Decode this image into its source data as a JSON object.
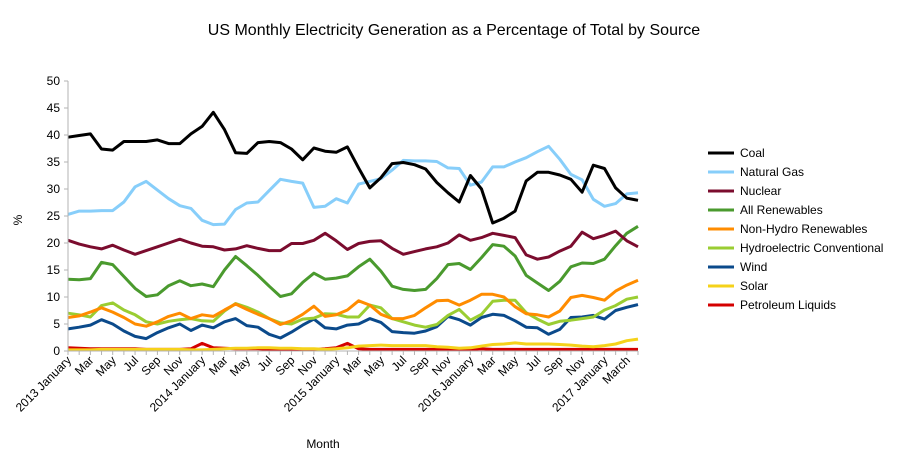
{
  "chart_data": {
    "type": "line",
    "title": "US Monthly Electricity Generation as a Percentage of Total by Source",
    "xlabel": "Month",
    "ylabel": "%",
    "ylim": [
      0,
      50
    ],
    "yticks": [
      0,
      5,
      10,
      15,
      20,
      25,
      30,
      35,
      40,
      45,
      50
    ],
    "grid": false,
    "legend_position": "right",
    "x_tick_labels": [
      {
        "index": 0,
        "label": "2013 January"
      },
      {
        "index": 2,
        "label": "Mar"
      },
      {
        "index": 4,
        "label": "May"
      },
      {
        "index": 6,
        "label": "Jul"
      },
      {
        "index": 8,
        "label": "Sep"
      },
      {
        "index": 10,
        "label": "Nov"
      },
      {
        "index": 12,
        "label": "2014 January"
      },
      {
        "index": 14,
        "label": "Mar"
      },
      {
        "index": 16,
        "label": "May"
      },
      {
        "index": 18,
        "label": "Jul"
      },
      {
        "index": 20,
        "label": "Sep"
      },
      {
        "index": 22,
        "label": "Nov"
      },
      {
        "index": 24,
        "label": "2015 January"
      },
      {
        "index": 26,
        "label": "Mar"
      },
      {
        "index": 28,
        "label": "May"
      },
      {
        "index": 30,
        "label": "Jul"
      },
      {
        "index": 32,
        "label": "Sep"
      },
      {
        "index": 34,
        "label": "Nov"
      },
      {
        "index": 36,
        "label": "2016 January"
      },
      {
        "index": 38,
        "label": "Mar"
      },
      {
        "index": 40,
        "label": "May"
      },
      {
        "index": 42,
        "label": "Jul"
      },
      {
        "index": 44,
        "label": "Sep"
      },
      {
        "index": 46,
        "label": "Nov"
      },
      {
        "index": 48,
        "label": "2017 January"
      },
      {
        "index": 50,
        "label": "March"
      }
    ],
    "series": [
      {
        "name": "Coal",
        "color": "#000000",
        "values": [
          39.6,
          39.9,
          40.2,
          37.4,
          37.2,
          38.8,
          38.8,
          38.8,
          39.1,
          38.4,
          38.4,
          40.2,
          41.6,
          44.2,
          41.0,
          36.7,
          36.6,
          38.6,
          38.8,
          38.6,
          37.4,
          35.4,
          37.6,
          37.0,
          36.8,
          37.8,
          33.9,
          30.2,
          32.1,
          34.7,
          34.9,
          34.5,
          33.7,
          31.2,
          29.3,
          27.6,
          32.5,
          30.0,
          23.7,
          24.6,
          25.9,
          31.5,
          33.1,
          33.1,
          32.6,
          31.8,
          29.4,
          34.4,
          33.8,
          30.2,
          28.3,
          27.9
        ]
      },
      {
        "name": "Natural Gas",
        "color": "#87cefa",
        "values": [
          25.3,
          25.9,
          25.9,
          26.0,
          26.0,
          27.6,
          30.4,
          31.4,
          29.8,
          28.2,
          26.9,
          26.4,
          24.2,
          23.4,
          23.5,
          26.2,
          27.4,
          27.6,
          29.7,
          31.8,
          31.4,
          31.1,
          26.6,
          26.8,
          28.2,
          27.4,
          30.9,
          31.4,
          31.9,
          33.5,
          35.3,
          35.2,
          35.2,
          35.1,
          33.9,
          33.8,
          30.7,
          31.3,
          34.1,
          34.1,
          35.0,
          35.8,
          36.9,
          37.9,
          35.5,
          32.7,
          31.7,
          28.1,
          26.8,
          27.3,
          29.1,
          29.3
        ]
      },
      {
        "name": "Nuclear",
        "color": "#7b0c2e",
        "values": [
          20.5,
          19.8,
          19.3,
          18.9,
          19.6,
          18.7,
          17.9,
          18.6,
          19.3,
          20.0,
          20.7,
          20.0,
          19.4,
          19.3,
          18.7,
          18.9,
          19.5,
          19.0,
          18.6,
          18.6,
          19.9,
          19.9,
          20.5,
          21.8,
          20.4,
          18.8,
          19.9,
          20.3,
          20.4,
          19.0,
          17.9,
          18.4,
          18.9,
          19.3,
          20.0,
          21.5,
          20.5,
          21.0,
          21.8,
          21.4,
          21.0,
          17.8,
          17.0,
          17.4,
          18.5,
          19.4,
          22.0,
          20.8,
          21.4,
          22.2,
          20.4,
          19.3
        ]
      },
      {
        "name": "All Renewables",
        "color": "#4a9a2e",
        "values": [
          13.3,
          13.2,
          13.4,
          16.4,
          16.0,
          13.8,
          11.6,
          10.1,
          10.4,
          12.1,
          13.0,
          12.1,
          12.4,
          11.9,
          15.0,
          17.5,
          15.8,
          14.0,
          12.0,
          10.1,
          10.6,
          12.7,
          14.4,
          13.3,
          13.5,
          13.9,
          15.6,
          17.0,
          14.8,
          12.0,
          11.4,
          11.2,
          11.4,
          13.4,
          16.0,
          16.2,
          15.1,
          17.3,
          19.7,
          19.4,
          17.6,
          14.0,
          12.6,
          11.2,
          12.9,
          15.6,
          16.3,
          16.2,
          17.0,
          19.5,
          21.8,
          23.1
        ]
      },
      {
        "name": "Non-Hydro Renewables",
        "color": "#ff8c00",
        "values": [
          6.2,
          6.5,
          7.2,
          8.0,
          7.2,
          6.2,
          5.0,
          4.6,
          5.4,
          6.4,
          7.0,
          6.0,
          6.7,
          6.4,
          7.6,
          8.7,
          7.7,
          6.8,
          6.0,
          4.9,
          5.6,
          6.8,
          8.3,
          6.4,
          6.7,
          7.6,
          9.3,
          8.5,
          6.8,
          6.0,
          6.0,
          6.6,
          8.0,
          9.3,
          9.4,
          8.5,
          9.4,
          10.5,
          10.5,
          10.0,
          8.2,
          6.9,
          6.7,
          6.3,
          7.4,
          9.9,
          10.3,
          9.9,
          9.4,
          11.1,
          12.2,
          13.1
        ]
      },
      {
        "name": "Hydroelectric Conventional",
        "color": "#9acd32",
        "values": [
          7.0,
          6.7,
          6.3,
          8.4,
          8.9,
          7.6,
          6.7,
          5.4,
          5.0,
          5.5,
          5.8,
          6.0,
          5.6,
          5.5,
          7.4,
          8.8,
          8.1,
          7.2,
          6.0,
          5.2,
          5.0,
          5.9,
          6.1,
          6.9,
          6.8,
          6.3,
          6.3,
          8.5,
          8.0,
          6.0,
          5.4,
          4.8,
          4.4,
          4.9,
          6.6,
          7.7,
          5.7,
          6.8,
          9.2,
          9.4,
          9.4,
          7.1,
          5.9,
          4.9,
          5.5,
          5.7,
          6.0,
          6.3,
          7.6,
          8.4,
          9.6,
          10.0
        ]
      },
      {
        "name": "Wind",
        "color": "#0b4a8b",
        "values": [
          4.1,
          4.4,
          4.8,
          5.8,
          5.0,
          3.7,
          2.7,
          2.3,
          3.4,
          4.3,
          5.0,
          3.8,
          4.8,
          4.3,
          5.4,
          6.0,
          4.7,
          4.4,
          3.1,
          2.4,
          3.5,
          4.8,
          5.9,
          4.3,
          4.1,
          4.8,
          5.0,
          6.0,
          5.3,
          3.6,
          3.4,
          3.3,
          3.7,
          4.5,
          6.4,
          5.8,
          4.8,
          6.2,
          6.8,
          6.6,
          5.6,
          4.4,
          4.3,
          3.1,
          4.0,
          6.2,
          6.3,
          6.6,
          5.9,
          7.5,
          8.1,
          8.6
        ]
      },
      {
        "name": "Solar",
        "color": "#f5d21a",
        "values": [
          0.2,
          0.2,
          0.2,
          0.3,
          0.3,
          0.3,
          0.3,
          0.3,
          0.3,
          0.3,
          0.3,
          0.2,
          0.2,
          0.3,
          0.4,
          0.5,
          0.5,
          0.6,
          0.6,
          0.5,
          0.5,
          0.4,
          0.4,
          0.3,
          0.4,
          0.6,
          0.9,
          1.0,
          1.1,
          1.0,
          1.0,
          1.0,
          1.0,
          0.8,
          0.7,
          0.5,
          0.6,
          0.9,
          1.2,
          1.3,
          1.5,
          1.3,
          1.3,
          1.3,
          1.2,
          1.1,
          0.9,
          0.8,
          1.0,
          1.3,
          1.9,
          2.2
        ]
      },
      {
        "name": "Petroleum Liquids",
        "color": "#d40000",
        "values": [
          0.6,
          0.5,
          0.4,
          0.4,
          0.4,
          0.4,
          0.4,
          0.3,
          0.3,
          0.3,
          0.3,
          0.4,
          1.4,
          0.6,
          0.5,
          0.4,
          0.4,
          0.4,
          0.3,
          0.3,
          0.3,
          0.3,
          0.3,
          0.4,
          0.6,
          1.4,
          0.4,
          0.3,
          0.3,
          0.3,
          0.3,
          0.3,
          0.3,
          0.3,
          0.3,
          0.3,
          0.3,
          0.4,
          0.3,
          0.3,
          0.3,
          0.3,
          0.3,
          0.3,
          0.3,
          0.3,
          0.3,
          0.3,
          0.3,
          0.3,
          0.3,
          0.3
        ]
      }
    ]
  }
}
